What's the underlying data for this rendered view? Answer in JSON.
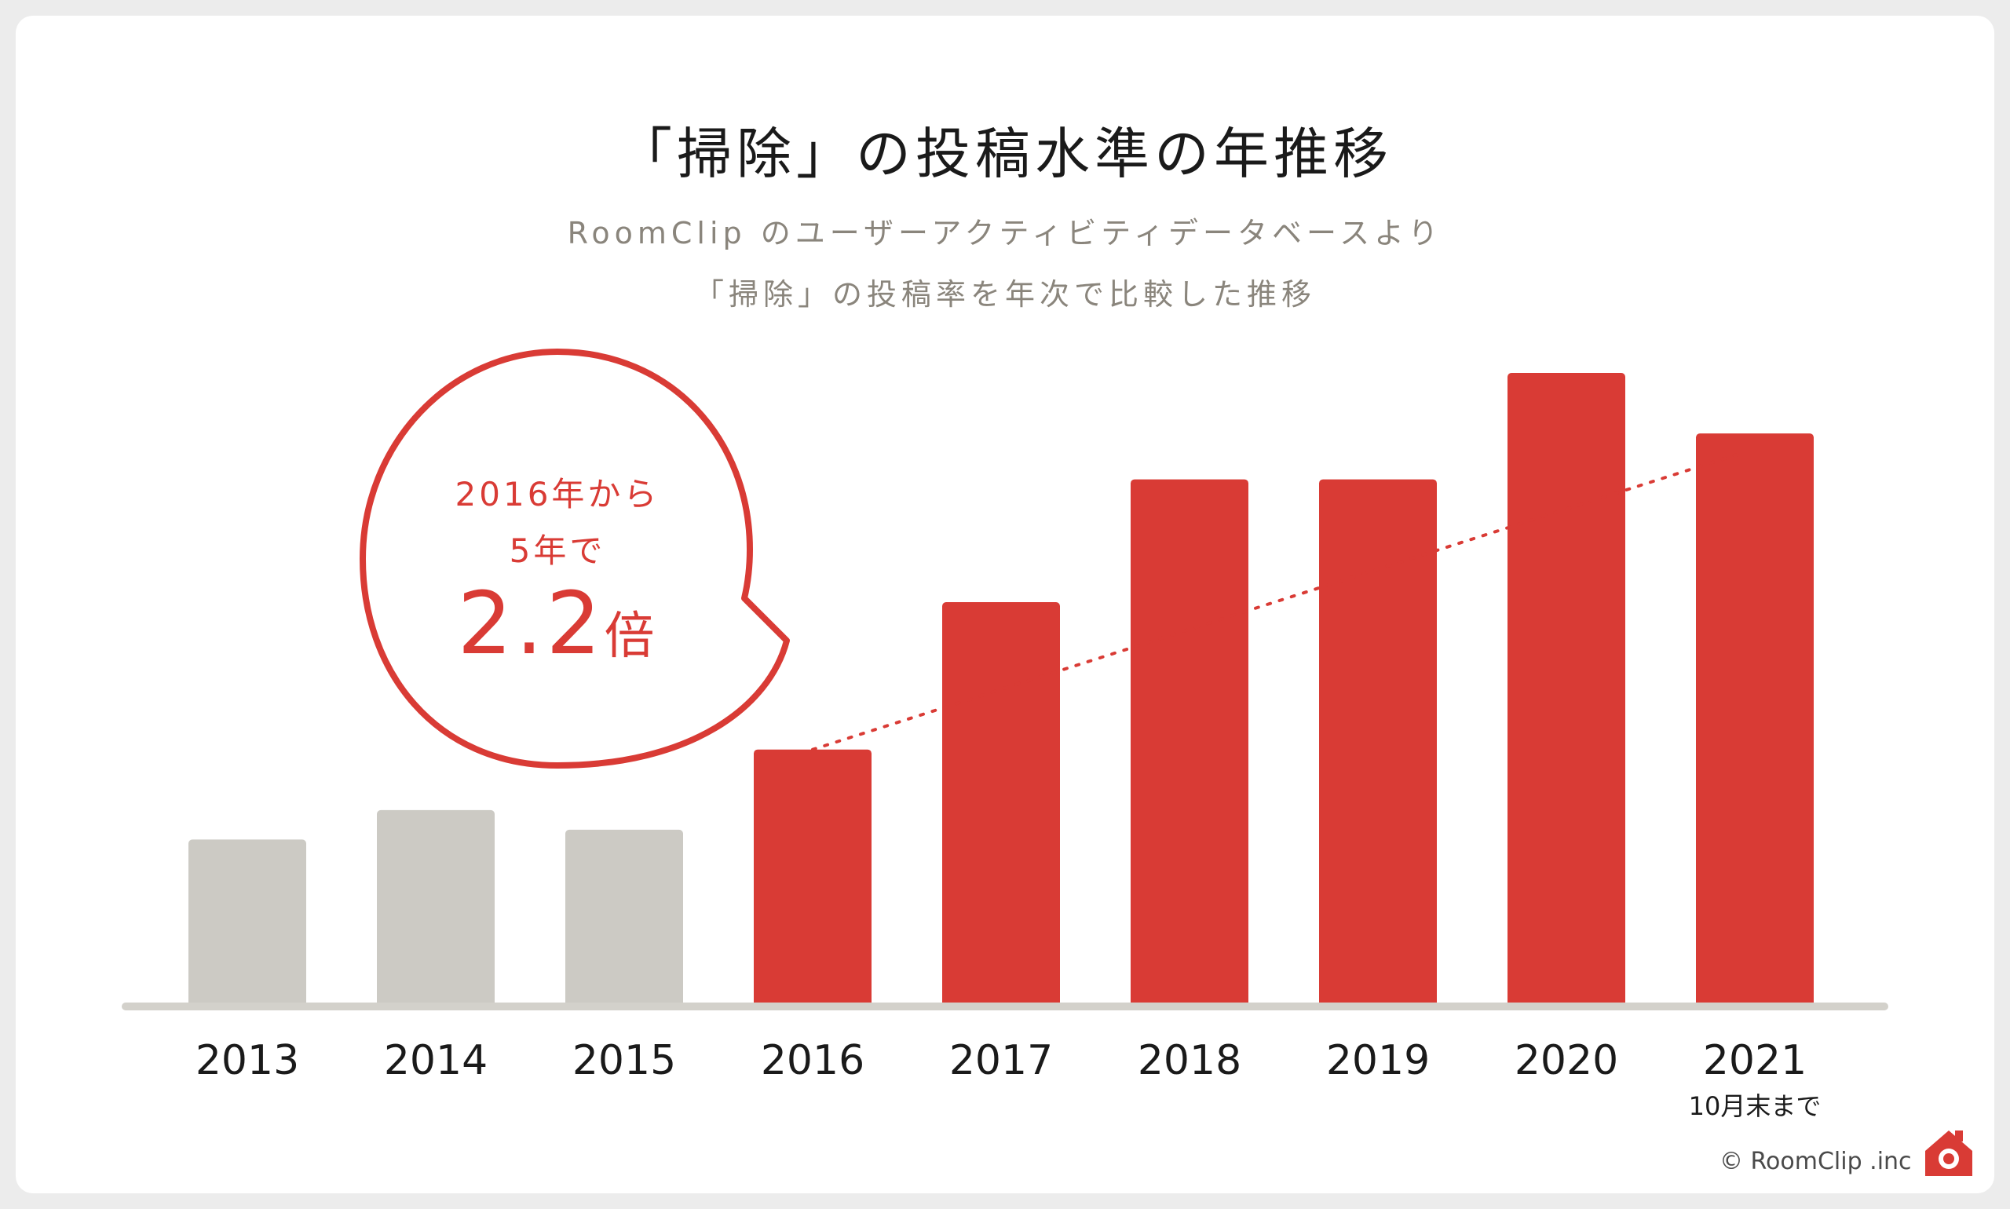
{
  "title": "「掃除」の投稿水準の年推移",
  "subtitle_line1": "RoomClip のユーザーアクティビティデータベースより",
  "subtitle_line2": "「掃除」の投稿率を年次で比較した推移",
  "callout": {
    "line1": "2016年から",
    "line2": "5年で",
    "value": "2.2",
    "unit": "倍"
  },
  "footnote_2021": "10月末まで",
  "copyright": "© RoomClip .inc",
  "colors": {
    "highlight": "#d93b35",
    "muted": "#cccac4",
    "baseline": "#d3d1cb"
  },
  "chart_data": {
    "type": "bar",
    "title": "「掃除」の投稿水準の年推移",
    "categories": [
      "2013",
      "2014",
      "2015",
      "2016",
      "2017",
      "2018",
      "2019",
      "2020",
      "2021"
    ],
    "values": [
      1.0,
      1.18,
      1.06,
      1.55,
      2.45,
      3.2,
      3.2,
      3.85,
      3.48
    ],
    "highlight_from": "2016",
    "ylim": [
      0,
      4.2
    ],
    "trendline": {
      "from": "2016",
      "to": "2021",
      "style": "dotted"
    },
    "grid": false,
    "legend": "none"
  }
}
